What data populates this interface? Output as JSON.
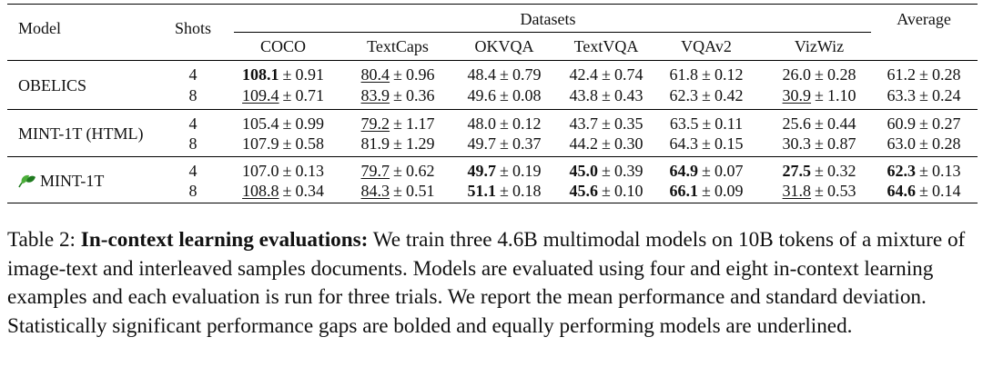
{
  "table": {
    "headers": {
      "model": "Model",
      "shots": "Shots",
      "datasets": "Datasets",
      "average": "Average",
      "columns": [
        "COCO",
        "TextCaps",
        "OKVQA",
        "TextVQA",
        "VQAv2",
        "VizWiz"
      ]
    },
    "rows": [
      {
        "model": "OBELICS",
        "icon": null,
        "shots": [
          "4",
          "8"
        ],
        "cells": [
          [
            {
              "v": "108.1",
              "sd": "0.91",
              "s": "b"
            },
            {
              "v": "80.4",
              "sd": "0.96",
              "s": "u"
            },
            {
              "v": "48.4",
              "sd": "0.79",
              "s": ""
            },
            {
              "v": "42.4",
              "sd": "0.74",
              "s": ""
            },
            {
              "v": "61.8",
              "sd": "0.12",
              "s": ""
            },
            {
              "v": "26.0",
              "sd": "0.28",
              "s": ""
            },
            {
              "v": "61.2",
              "sd": "0.28",
              "s": ""
            }
          ],
          [
            {
              "v": "109.4",
              "sd": "0.71",
              "s": "u"
            },
            {
              "v": "83.9",
              "sd": "0.36",
              "s": "u"
            },
            {
              "v": "49.6",
              "sd": "0.08",
              "s": ""
            },
            {
              "v": "43.8",
              "sd": "0.43",
              "s": ""
            },
            {
              "v": "62.3",
              "sd": "0.42",
              "s": ""
            },
            {
              "v": "30.9",
              "sd": "1.10",
              "s": "u"
            },
            {
              "v": "63.3",
              "sd": "0.24",
              "s": ""
            }
          ]
        ]
      },
      {
        "model": "MINT-1T (HTML)",
        "icon": null,
        "shots": [
          "4",
          "8"
        ],
        "cells": [
          [
            {
              "v": "105.4",
              "sd": "0.99",
              "s": ""
            },
            {
              "v": "79.2",
              "sd": "1.17",
              "s": "u"
            },
            {
              "v": "48.0",
              "sd": "0.12",
              "s": ""
            },
            {
              "v": "43.7",
              "sd": "0.35",
              "s": ""
            },
            {
              "v": "63.5",
              "sd": "0.11",
              "s": ""
            },
            {
              "v": "25.6",
              "sd": "0.44",
              "s": ""
            },
            {
              "v": "60.9",
              "sd": "0.27",
              "s": ""
            }
          ],
          [
            {
              "v": "107.9",
              "sd": "0.58",
              "s": ""
            },
            {
              "v": "81.9",
              "sd": "1.29",
              "s": ""
            },
            {
              "v": "49.7",
              "sd": "0.37",
              "s": ""
            },
            {
              "v": "44.2",
              "sd": "0.30",
              "s": ""
            },
            {
              "v": "64.3",
              "sd": "0.15",
              "s": ""
            },
            {
              "v": "30.3",
              "sd": "0.87",
              "s": ""
            },
            {
              "v": "63.0",
              "sd": "0.28",
              "s": ""
            }
          ]
        ]
      },
      {
        "model": "MINT-1T",
        "icon": "mint-leaf-icon",
        "shots": [
          "4",
          "8"
        ],
        "cells": [
          [
            {
              "v": "107.0",
              "sd": "0.13",
              "s": ""
            },
            {
              "v": "79.7",
              "sd": "0.62",
              "s": "u"
            },
            {
              "v": "49.7",
              "sd": "0.19",
              "s": "b"
            },
            {
              "v": "45.0",
              "sd": "0.39",
              "s": "b"
            },
            {
              "v": "64.9",
              "sd": "0.07",
              "s": "b"
            },
            {
              "v": "27.5",
              "sd": "0.32",
              "s": "b"
            },
            {
              "v": "62.3",
              "sd": "0.13",
              "s": "b"
            }
          ],
          [
            {
              "v": "108.8",
              "sd": "0.34",
              "s": "u"
            },
            {
              "v": "84.3",
              "sd": "0.51",
              "s": "u"
            },
            {
              "v": "51.1",
              "sd": "0.18",
              "s": "b"
            },
            {
              "v": "45.6",
              "sd": "0.10",
              "s": "b"
            },
            {
              "v": "66.1",
              "sd": "0.09",
              "s": "b"
            },
            {
              "v": "31.8",
              "sd": "0.53",
              "s": "u"
            },
            {
              "v": "64.6",
              "sd": "0.14",
              "s": "b"
            }
          ]
        ]
      }
    ],
    "pm": "±"
  },
  "caption": {
    "label": "Table 2: ",
    "lead": "In-context learning evaluations:",
    "body": " We train three 4.6B multimodal models on 10B tokens of a mixture of image-text and interleaved samples documents. Models are evaluated using four and eight in-context learning examples and each evaluation is run for three trials. We report the mean performance and standard deviation. Statistically significant performance gaps are bolded and equally performing models are underlined."
  },
  "colors": {
    "leaf_dark": "#1f7a1f",
    "leaf_light": "#4caf3a"
  }
}
